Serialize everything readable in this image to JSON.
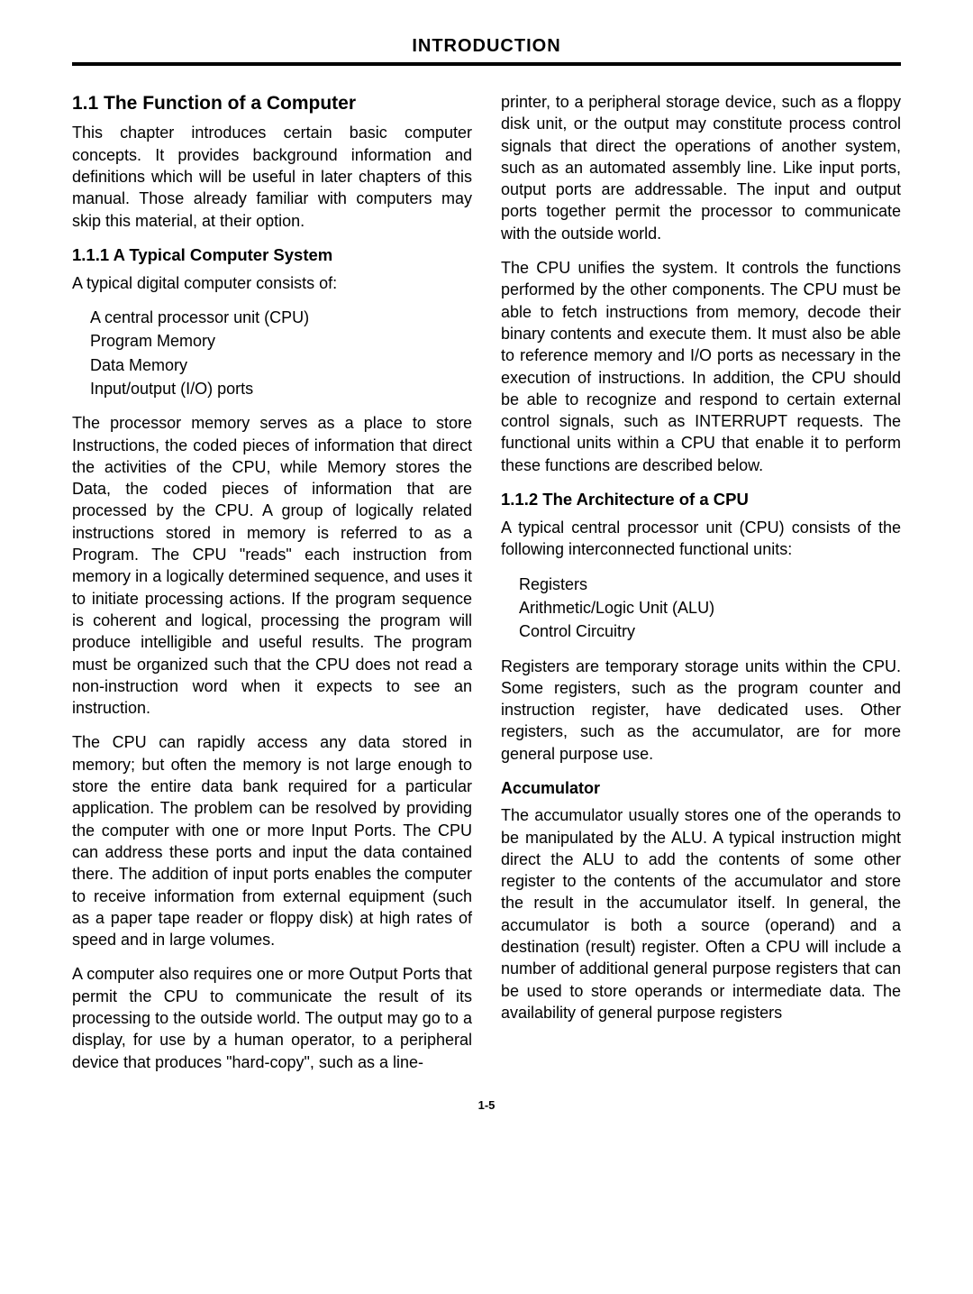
{
  "header": "INTRODUCTION",
  "page_number": "1-5",
  "left": {
    "h_1_1": "1.1 The Function of a Computer",
    "p_intro": "This chapter introduces certain basic computer concepts. It provides background information and definitions which will be useful in later chapters of this manual. Those already familiar with computers may skip this material, at their option.",
    "h_1_1_1": "1.1.1 A Typical Computer System",
    "p_typical": "A typical digital computer consists of:",
    "list1": {
      "a": "A central processor unit (CPU)",
      "b": "Program Memory",
      "c": "Data Memory",
      "d": "Input/output (I/O) ports"
    },
    "p_processor": "The processor memory serves as a place to store Instructions, the coded pieces of information that direct the activities of the CPU, while Memory stores the Data, the coded pieces of information that are processed by the CPU. A group of logically related instructions stored in memory is referred to as a Program. The CPU \"reads\" each instruction from memory in a logically determined sequence, and uses it to initiate processing actions. If the program sequence is coherent and logical, processing the program will produce intelligible and useful results. The program must be organized such that the CPU does not read a non-instruction word when it expects to see an instruction.",
    "p_cpu_access": "The CPU can rapidly access any data stored in memory; but often the memory is not large enough to store the entire data bank required for a particular application. The problem can be resolved by providing the computer with one or more Input Ports. The CPU can address these ports and input the data contained there. The addition of input ports enables the computer to receive information from external equipment (such as a paper tape reader or floppy disk) at high rates of speed and in large volumes.",
    "p_output": "A computer also requires one or more Output Ports that permit the CPU to communicate the result of its processing to the outside world. The output may go to a display, for use by a human operator, to a peripheral device that produces \"hard-copy\", such as a line-"
  },
  "right": {
    "p_printer": "printer, to a peripheral storage device, such as a floppy disk unit, or the output may constitute process control signals that direct the operations of another system, such as an automated assembly line. Like input ports, output ports are addressable. The input and output ports together permit the processor to communicate with the outside world.",
    "p_cpu_unifies": "The CPU unifies the system. It controls the functions performed by the other components. The CPU must be able to fetch instructions from memory, decode their binary contents and execute them. It must also be able to reference memory and I/O ports as necessary in the execution of instructions. In addition, the CPU should be able to recognize and respond to certain external control signals, such as INTERRUPT requests. The functional units within a CPU that enable it to perform these functions are described below.",
    "h_1_1_2": "1.1.2 The Architecture of a CPU",
    "p_arch": "A typical central processor unit (CPU) consists of the following interconnected functional units:",
    "list2": {
      "a": "Registers",
      "b": "Arithmetic/Logic Unit (ALU)",
      "c": "Control Circuitry"
    },
    "p_registers": "Registers are temporary storage units within the CPU. Some registers, such as the program counter and instruction register, have dedicated uses. Other registers, such as the accumulator, are for more general purpose use.",
    "h_accumulator": "Accumulator",
    "p_accumulator": "The accumulator usually stores one of the operands to be manipulated by the ALU. A typical instruction might direct the ALU to add the contents of some other register to the contents of the accumulator and store the result in the accumulator itself. In general, the accumulator is both a source (operand) and a destination (result) register. Often a CPU will include a number of additional general purpose registers that can be used to store operands or intermediate data. The availability of general purpose registers"
  }
}
